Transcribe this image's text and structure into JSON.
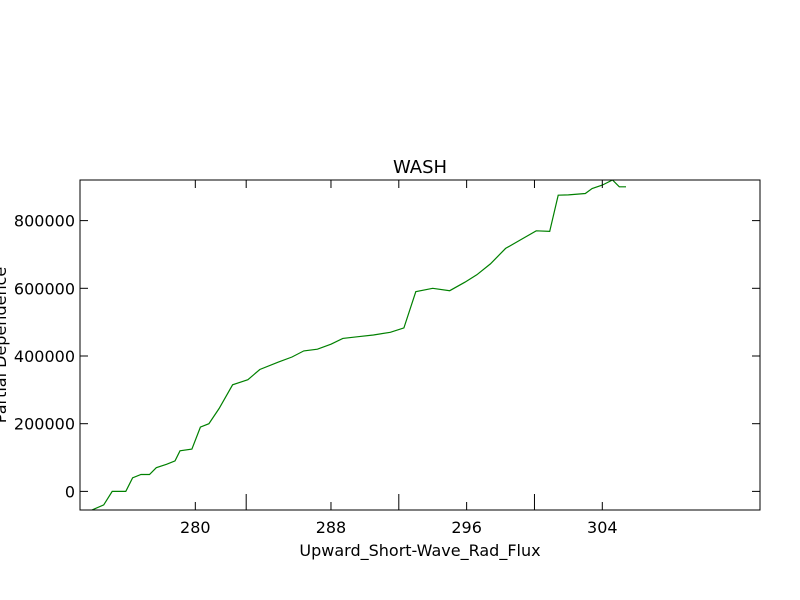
{
  "chart_data": {
    "type": "line",
    "title": "WASH",
    "xlabel": "Upward_Short-Wave_Rad_Flux",
    "ylabel": "Partial Dependence",
    "xlim": [
      273.2,
      313.3
    ],
    "ylim": [
      -55000,
      920000
    ],
    "x_ticks": [
      280,
      288,
      296,
      304
    ],
    "y_ticks": [
      0,
      200000,
      400000,
      600000,
      800000
    ],
    "y_tick_labels": [
      "0",
      "200000",
      "400000",
      "600000",
      "800000"
    ],
    "x_ticks_unlabeled": [
      283,
      292,
      300
    ],
    "grid": false,
    "series": [
      {
        "color": "#008000",
        "x": [
          273.9,
          274.6,
          275.1,
          275.9,
          276.3,
          276.8,
          277.3,
          277.7,
          278.3,
          278.8,
          279.1,
          279.8,
          280.3,
          280.8,
          281.4,
          282.2,
          283.1,
          283.8,
          284.9,
          285.7,
          286.4,
          287.2,
          288.0,
          288.7,
          289.6,
          290.5,
          291.5,
          292.3,
          293.0,
          294.0,
          295.0,
          295.9,
          296.6,
          297.4,
          298.3,
          299.2,
          300.1,
          300.9,
          301.4,
          302.0,
          303.0,
          303.4,
          304.0,
          304.6,
          305.0,
          305.4
        ],
        "y": [
          -55000,
          -40000,
          0,
          0,
          40000,
          50000,
          50000,
          70000,
          80000,
          90000,
          120000,
          125000,
          190000,
          200000,
          245000,
          315000,
          330000,
          360000,
          382000,
          397000,
          415000,
          420000,
          435000,
          452000,
          457000,
          462000,
          470000,
          483000,
          590000,
          600000,
          593000,
          618000,
          640000,
          672000,
          718000,
          744000,
          770000,
          768000,
          875000,
          876000,
          880000,
          895000,
          905000,
          920000,
          900000,
          900000
        ]
      }
    ]
  }
}
